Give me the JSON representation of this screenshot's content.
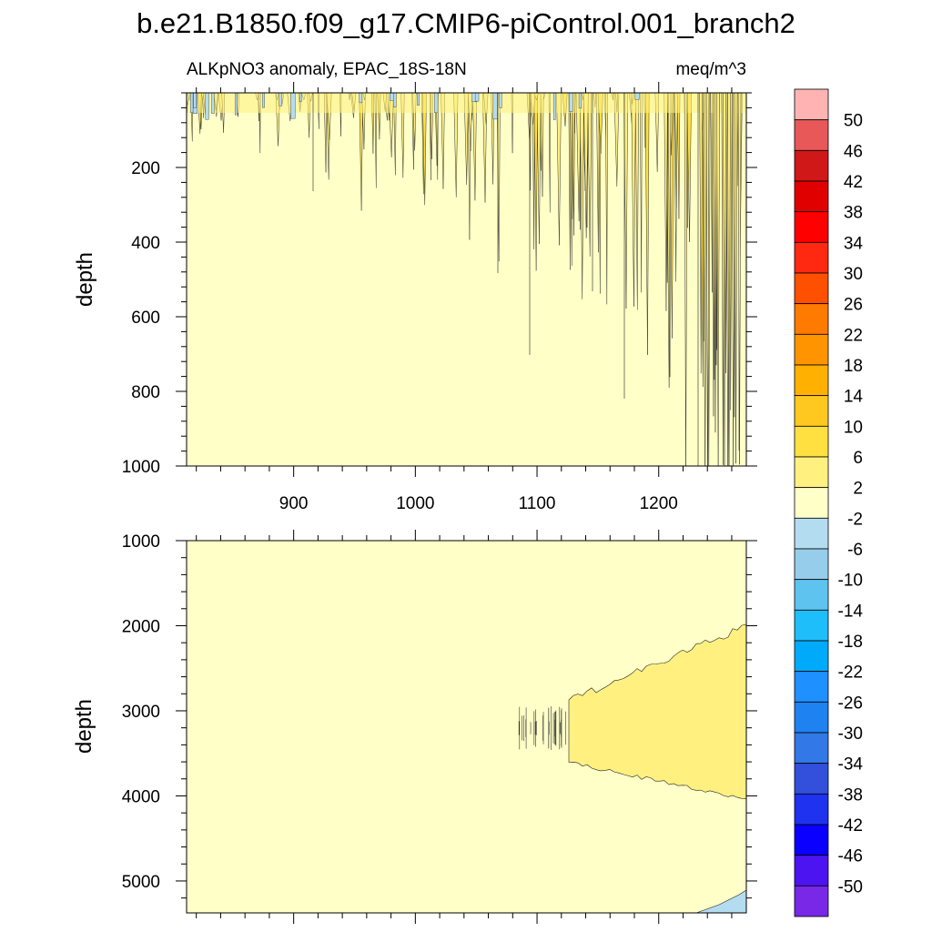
{
  "figure": {
    "title": "b.e21.B1850.f09_g17.CMIP6-piControl.001_branch2",
    "subtitle_left": "ALKpNO3 anomaly, EPAC_18S-18N",
    "subtitle_right": "meq/m^3"
  },
  "chart_data": [
    {
      "type": "heatmap",
      "panel": "upper",
      "title": "ALKpNO3 anomaly, EPAC_18S-18N",
      "units": "meq/m^3",
      "xlabel": "",
      "ylabel": "depth",
      "xlim": [
        812,
        1272
      ],
      "ylim": [
        1000,
        0
      ],
      "x_ticks": [
        900,
        1000,
        1100,
        1200
      ],
      "x_tick_labels": [
        "900",
        "1000",
        "1100",
        "1200"
      ],
      "y_ticks": [
        200,
        400,
        600,
        800,
        1000
      ],
      "y_tick_labels": [
        "200",
        "400",
        "600",
        "800",
        "1000"
      ],
      "grid": false
    },
    {
      "type": "heatmap",
      "panel": "lower",
      "xlabel": "",
      "ylabel": "depth",
      "xlim": [
        812,
        1272
      ],
      "ylim": [
        5375,
        1000
      ],
      "x_ticks": [
        900,
        1000,
        1100,
        1200
      ],
      "y_ticks": [
        1000,
        2000,
        3000,
        4000,
        5000
      ],
      "y_tick_labels": [
        "1000",
        "2000",
        "3000",
        "4000",
        "5000"
      ],
      "grid": false
    }
  ],
  "colorbar": {
    "labels": [
      "50",
      "46",
      "42",
      "38",
      "34",
      "30",
      "26",
      "22",
      "18",
      "14",
      "10",
      "6",
      "2",
      "-2",
      "-6",
      "-10",
      "-14",
      "-18",
      "-22",
      "-26",
      "-30",
      "-34",
      "-38",
      "-42",
      "-46",
      "-50"
    ],
    "colors": [
      "#FFB3B3",
      "#E85858",
      "#D01818",
      "#E00000",
      "#FF0000",
      "#FF2810",
      "#FF5000",
      "#FF7A00",
      "#FF9400",
      "#FFB000",
      "#FFC820",
      "#FFE040",
      "#FFF080",
      "#FFFFC8",
      "#B4DCF0",
      "#96CDEB",
      "#5FC3EF",
      "#1EBEFA",
      "#00AAFA",
      "#1E90FF",
      "#1E82F0",
      "#3278E6",
      "#3250DC",
      "#1E32F0",
      "#0A00FF",
      "#4B14F0",
      "#7828E6"
    ]
  }
}
